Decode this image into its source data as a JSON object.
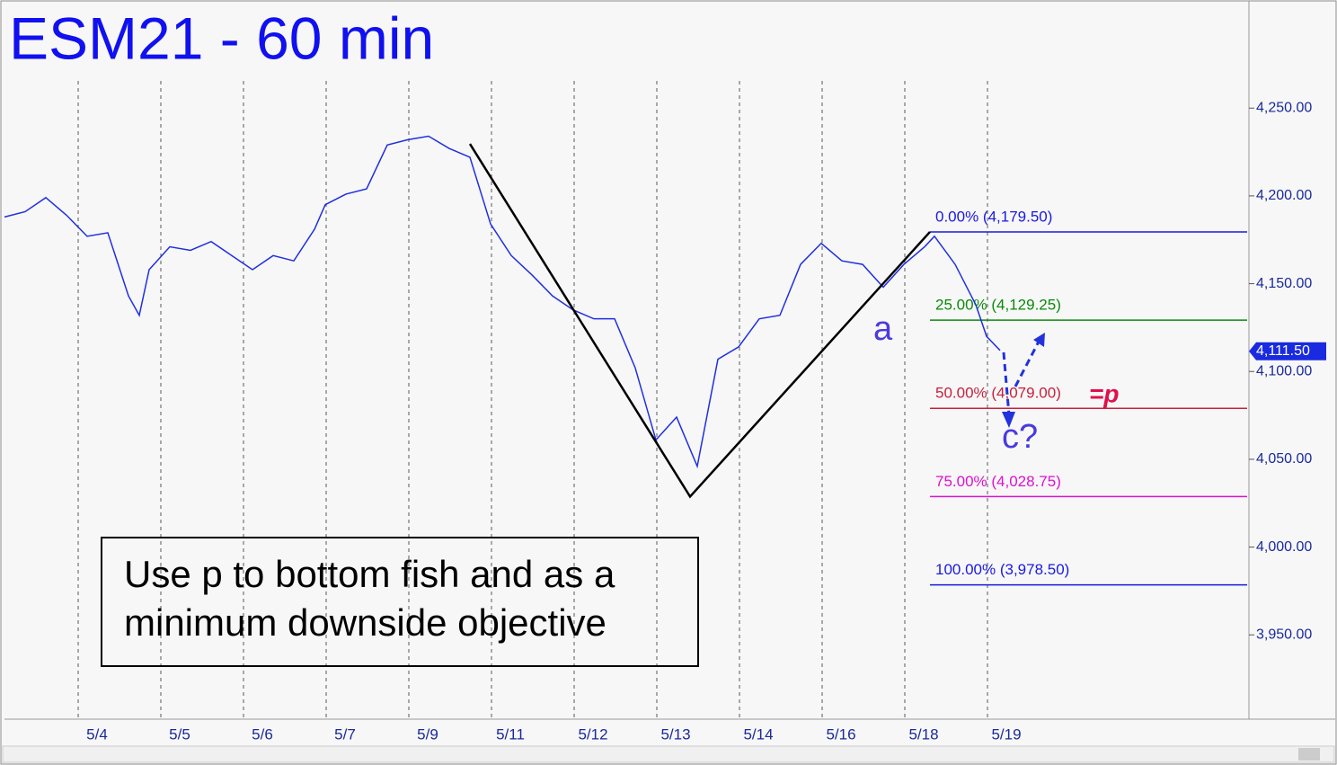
{
  "chart_data": {
    "type": "line",
    "title": "ESM21 - 60 min",
    "color": "#1f2fe0",
    "x": [
      0,
      5.75,
      11.5,
      17.25,
      23,
      28.75,
      34.5,
      37.5,
      40.25,
      46,
      51.75,
      57.5,
      63.25,
      69,
      74.75,
      80.5,
      86.25,
      89.25,
      95,
      100.75,
      106.5,
      112.25,
      118,
      123.75,
      129.5,
      135.25,
      141,
      146.75,
      152.5,
      158.25,
      164,
      169.75,
      175.5,
      181.25,
      187,
      192.75,
      198.5,
      204.25,
      210,
      215.75,
      221.5,
      227.25,
      233,
      238.75,
      244.5,
      250.25,
      256,
      258.75,
      264.5,
      270.25,
      273.25,
      277
    ],
    "values": [
      4188,
      4191,
      4199,
      4189,
      4177,
      4179,
      4143,
      4132,
      4158,
      4171,
      4169,
      4174,
      4166,
      4158,
      4166,
      4163,
      4181,
      4195,
      4201,
      4204,
      4229,
      4232,
      4234,
      4227,
      4222,
      4184,
      4166,
      4155,
      4143,
      4135,
      4130,
      4130,
      4102,
      4061,
      4074,
      4046,
      4107,
      4114,
      4130,
      4132,
      4161,
      4173,
      4163,
      4161,
      4148,
      4161,
      4171,
      4177,
      4161,
      4138,
      4120,
      4112
    ],
    "xlim": [
      0,
      346.25
    ],
    "ylim": [
      3902,
      4309
    ],
    "xticks": [
      {
        "value": 20.5,
        "label": "5/4"
      },
      {
        "value": 43.5,
        "label": "5/5"
      },
      {
        "value": 66.5,
        "label": "5/6"
      },
      {
        "value": 89.5,
        "label": "5/7"
      },
      {
        "value": 112.5,
        "label": "5/9"
      },
      {
        "value": 135.5,
        "label": "5/11"
      },
      {
        "value": 158.5,
        "label": "5/12"
      },
      {
        "value": 181.5,
        "label": "5/13"
      },
      {
        "value": 204.5,
        "label": "5/14"
      },
      {
        "value": 227.5,
        "label": "5/16"
      },
      {
        "value": 250.5,
        "label": "5/18"
      },
      {
        "value": 273.5,
        "label": "5/19"
      }
    ],
    "yticks": [
      {
        "value": 3950,
        "label": "3,950.00"
      },
      {
        "value": 4000,
        "label": "4,000.00"
      },
      {
        "value": 4050,
        "label": "4,050.00"
      },
      {
        "value": 4100,
        "label": "4,100.00"
      },
      {
        "value": 4150,
        "label": "4,150.00"
      },
      {
        "value": 4200,
        "label": "4,200.00"
      },
      {
        "value": 4250,
        "label": "4,250.00"
      }
    ],
    "last_price": {
      "value": 4111.5,
      "label": "4,111.50"
    },
    "pattern": {
      "x": [
        129.5,
        190.75,
        257.5
      ],
      "values": [
        4229.6,
        4028.75,
        4179.5
      ]
    },
    "fib_levels": [
      {
        "label": "0.00% (4,179.50)",
        "value": 4179.5,
        "color": "#1a1ae0"
      },
      {
        "label": "25.00% (4,129.25)",
        "value": 4129.25,
        "color": "#0a8a0a"
      },
      {
        "label": "50.00% (4,079.00)",
        "value": 4079,
        "color": "#c8203c"
      },
      {
        "label": "75.00% (4,028.75)",
        "value": 4028.75,
        "color": "#e010d0"
      },
      {
        "label": "100.00% (3,978.50)",
        "value": 3978.5,
        "color": "#1a1ae0"
      }
    ],
    "annotations": {
      "a": "a",
      "c": "c?",
      "p": "=p"
    },
    "note": [
      "Use p to bottom fish and as a",
      "minimum downside objective"
    ]
  }
}
